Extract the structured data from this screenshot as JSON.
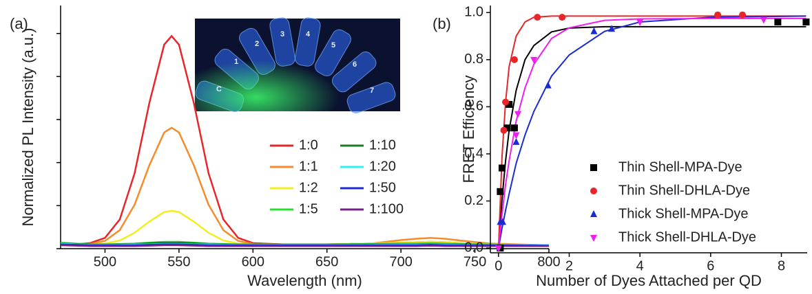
{
  "chart_data": [
    {
      "type": "line",
      "panel_label": "(a)",
      "x_label": "Wavelength (nm)",
      "y_label": "Normalized PL Intensity (a.u.)",
      "xlim": [
        470,
        800
      ],
      "xticks": [
        500,
        550,
        600,
        650,
        700,
        750,
        800
      ],
      "ylim": [
        0,
        5.65
      ],
      "yticks": [
        0,
        1,
        2,
        3,
        4,
        5
      ],
      "inset_labels": [
        "C",
        "1",
        "2",
        "3",
        "4",
        "5",
        "6",
        "7"
      ],
      "x": [
        470,
        480,
        490,
        500,
        510,
        520,
        530,
        540,
        545,
        550,
        560,
        570,
        580,
        590,
        600,
        620,
        650,
        680,
        700,
        710,
        720,
        730,
        740,
        760,
        800
      ],
      "series": [
        {
          "name": "1:0",
          "color": "#e8262a",
          "values": [
            0.12,
            0.1,
            0.13,
            0.25,
            0.68,
            1.75,
            3.39,
            4.74,
            4.94,
            4.74,
            3.39,
            1.75,
            0.68,
            0.25,
            0.13,
            0.1,
            0.1,
            0.12,
            0.14,
            0.15,
            0.16,
            0.15,
            0.13,
            0.1,
            0.08
          ]
        },
        {
          "name": "1:1",
          "color": "#f68b2c",
          "values": [
            0.12,
            0.1,
            0.11,
            0.18,
            0.43,
            1.02,
            1.94,
            2.7,
            2.81,
            2.7,
            1.94,
            1.02,
            0.43,
            0.18,
            0.11,
            0.1,
            0.1,
            0.12,
            0.2,
            0.23,
            0.25,
            0.23,
            0.19,
            0.12,
            0.08
          ]
        },
        {
          "name": "1:2",
          "color": "#f2ee1e",
          "values": [
            0.12,
            0.1,
            0.1,
            0.12,
            0.19,
            0.37,
            0.63,
            0.85,
            0.88,
            0.85,
            0.63,
            0.37,
            0.19,
            0.12,
            0.1,
            0.1,
            0.1,
            0.12,
            0.14,
            0.15,
            0.16,
            0.15,
            0.13,
            0.1,
            0.08
          ]
        },
        {
          "name": "1:5",
          "color": "#25e02c",
          "values": [
            0.14,
            0.12,
            0.1,
            0.1,
            0.11,
            0.12,
            0.14,
            0.16,
            0.16,
            0.16,
            0.14,
            0.12,
            0.11,
            0.1,
            0.1,
            0.1,
            0.1,
            0.11,
            0.12,
            0.12,
            0.13,
            0.12,
            0.11,
            0.1,
            0.08
          ]
        },
        {
          "name": "1:10",
          "color": "#1a7a22",
          "values": [
            0.13,
            0.11,
            0.1,
            0.1,
            0.1,
            0.11,
            0.13,
            0.14,
            0.14,
            0.14,
            0.13,
            0.11,
            0.1,
            0.1,
            0.1,
            0.1,
            0.1,
            0.1,
            0.11,
            0.11,
            0.11,
            0.11,
            0.1,
            0.09,
            0.08
          ]
        },
        {
          "name": "1:20",
          "color": "#2ef0f0",
          "values": [
            0.12,
            0.1,
            0.09,
            0.09,
            0.09,
            0.1,
            0.1,
            0.11,
            0.11,
            0.11,
            0.1,
            0.1,
            0.09,
            0.09,
            0.09,
            0.09,
            0.09,
            0.09,
            0.1,
            0.1,
            0.1,
            0.1,
            0.09,
            0.09,
            0.08
          ]
        },
        {
          "name": "1:50",
          "color": "#1a2ad6",
          "values": [
            0.1,
            0.09,
            0.08,
            0.08,
            0.08,
            0.08,
            0.09,
            0.1,
            0.1,
            0.1,
            0.09,
            0.08,
            0.08,
            0.08,
            0.08,
            0.08,
            0.08,
            0.08,
            0.08,
            0.08,
            0.09,
            0.08,
            0.08,
            0.08,
            0.07
          ]
        },
        {
          "name": "1:100",
          "color": "#7a1c8a",
          "values": [
            0.08,
            0.07,
            0.06,
            0.06,
            0.06,
            0.06,
            0.07,
            0.08,
            0.08,
            0.08,
            0.07,
            0.06,
            0.06,
            0.06,
            0.06,
            0.06,
            0.06,
            0.06,
            0.06,
            0.06,
            0.07,
            0.06,
            0.06,
            0.06,
            0.06
          ]
        }
      ]
    },
    {
      "type": "scatter",
      "panel_label": "(b)",
      "x_label": "Number of Dyes Attached per QD",
      "y_label": "FRET Efficiency",
      "xlim": [
        -0.23,
        8.73
      ],
      "xticks": [
        0,
        2,
        4,
        6,
        8
      ],
      "ylim": [
        -0.02,
        1.03
      ],
      "yticks": [
        {
          "value": 0,
          "label": "0.0"
        },
        {
          "value": 0.2,
          "label": "0.2"
        },
        {
          "value": 0.4,
          "label": "0.4"
        },
        {
          "value": 0.6,
          "label": "0.6"
        },
        {
          "value": 0.8,
          "label": "0.8"
        },
        {
          "value": 1,
          "label": "1.0"
        }
      ],
      "legend": "lower right",
      "series": [
        {
          "name": "Thin Shell-MPA-Dye",
          "color": "#000000",
          "marker": "square",
          "x": [
            0.05,
            0.05,
            0.1,
            0.25,
            0.3,
            0.45,
            7.9,
            8.7
          ],
          "values": [
            0,
            0.24,
            0.34,
            0.51,
            0.61,
            0.51,
            0.96,
            0.96
          ],
          "fit": {
            "x": [
              0,
              0.1,
              0.2,
              0.3,
              0.5,
              0.75,
              1,
              1.5,
              2,
              3,
              4,
              6,
              8.7
            ],
            "values": [
              0,
              0.208,
              0.37,
              0.5,
              0.67,
              0.8,
              0.86,
              0.918,
              0.934,
              0.94,
              0.94,
              0.94,
              0.94
            ]
          }
        },
        {
          "name": "Thin Shell-DHLA-Dye",
          "color": "#e8262a",
          "marker": "circle",
          "x": [
            0.15,
            0.2,
            0.45,
            1.1,
            1.8,
            6.2,
            6.9
          ],
          "values": [
            0.5,
            0.62,
            0.8,
            0.98,
            0.98,
            0.99,
            0.99
          ],
          "fit": {
            "x": [
              0,
              0.1,
              0.2,
              0.3,
              0.5,
              0.75,
              1,
              1.5,
              2,
              3,
              4,
              6,
              8.7
            ],
            "values": [
              0,
              0.39,
              0.62,
              0.77,
              0.9,
              0.96,
              0.98,
              0.985,
              0.985,
              0.985,
              0.985,
              0.985,
              0.985
            ]
          }
        },
        {
          "name": "Thick Shell-MPA-Dye",
          "color": "#1a2ad6",
          "marker": "triangle-up",
          "x": [
            0.05,
            0.12,
            0.5,
            1.4,
            2.7,
            3.2
          ],
          "values": [
            0.11,
            0.11,
            0.45,
            0.69,
            0.92,
            0.93
          ],
          "fit": {
            "x": [
              0,
              0.1,
              0.2,
              0.3,
              0.5,
              0.75,
              1,
              1.5,
              2,
              3,
              4,
              6,
              8.7
            ],
            "values": [
              0,
              0.085,
              0.16,
              0.23,
              0.36,
              0.48,
              0.58,
              0.73,
              0.82,
              0.92,
              0.96,
              0.98,
              0.985
            ]
          }
        },
        {
          "name": "Thick Shell-DHLA-Dye",
          "color": "#f01ef0",
          "marker": "triangle-down",
          "x": [
            0,
            0.5,
            0.55,
            1.0,
            4.0,
            7.5
          ],
          "values": [
            0,
            0.48,
            0.57,
            0.8,
            0.96,
            0.97
          ],
          "fit": {
            "x": [
              0,
              0.1,
              0.2,
              0.3,
              0.5,
              0.75,
              1,
              1.5,
              2,
              3,
              4,
              6,
              8.7
            ],
            "values": [
              0,
              0.144,
              0.27,
              0.37,
              0.54,
              0.68,
              0.78,
              0.89,
              0.935,
              0.967,
              0.973,
              0.975,
              0.975
            ]
          }
        }
      ]
    }
  ]
}
